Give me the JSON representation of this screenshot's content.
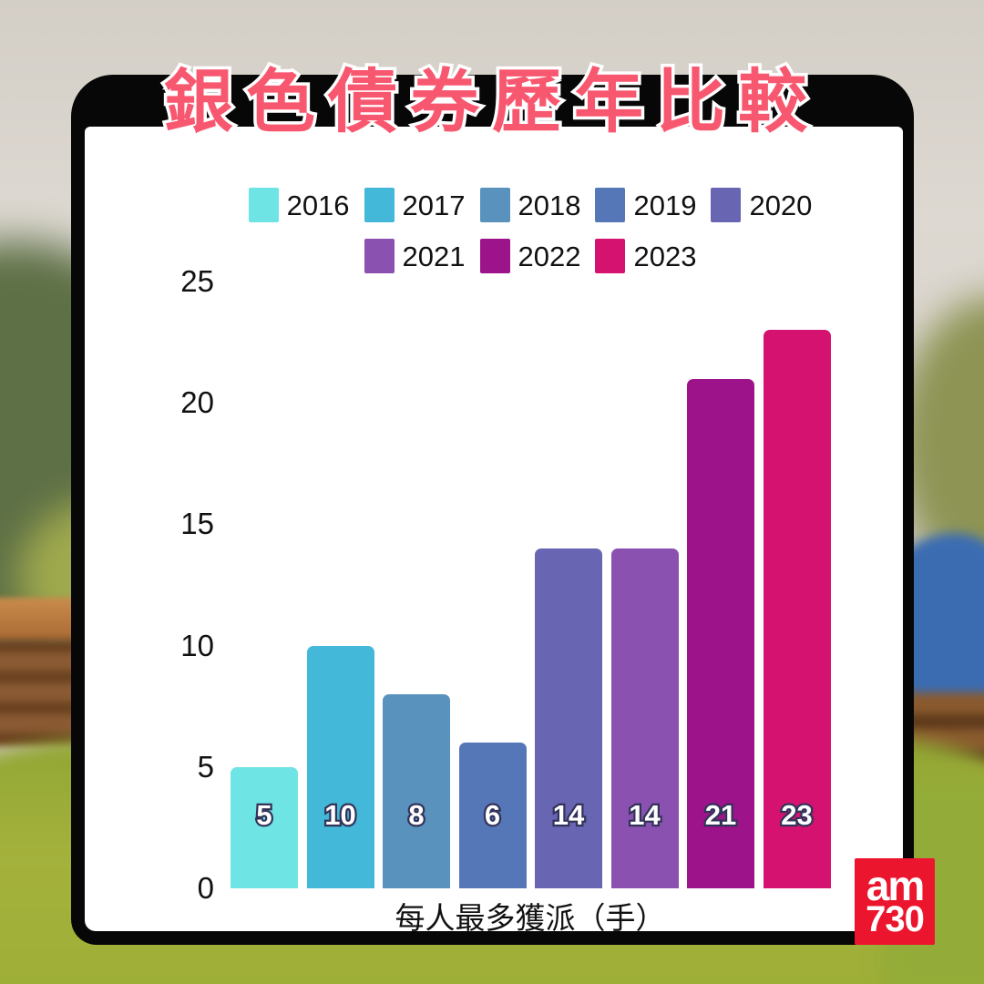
{
  "title": "銀色債券歷年比較",
  "chart_data": {
    "type": "bar",
    "title": "銀色債券歷年比較",
    "categories": [
      "2016",
      "2017",
      "2018",
      "2019",
      "2020",
      "2021",
      "2022",
      "2023"
    ],
    "values": [
      5,
      10,
      8,
      6,
      14,
      14,
      21,
      23
    ],
    "bar_colors": [
      "#6FE4E4",
      "#43B8D9",
      "#5992BD",
      "#5577B7",
      "#6865B3",
      "#8B51B0",
      "#9D1389",
      "#D5126F"
    ],
    "xlabel": "每人最多獲派（手）",
    "ylabel": "",
    "ylim": [
      0,
      25
    ],
    "yticks": [
      0,
      5,
      10,
      15,
      20,
      25
    ],
    "grid": false,
    "legend_position": "top",
    "legend_rows": [
      [
        "2016",
        "2017",
        "2018",
        "2019",
        "2020"
      ],
      [
        "2021",
        "2022",
        "2023"
      ]
    ]
  },
  "colors": {
    "title_pink": "#F8586F",
    "frame_black": "#070707",
    "card_white": "#FFFFFF",
    "bar_label_outline": "#33335A"
  },
  "logo": {
    "line1": "am",
    "line2": "730",
    "bg": "#EB152D",
    "text": "#FFFFFF"
  }
}
